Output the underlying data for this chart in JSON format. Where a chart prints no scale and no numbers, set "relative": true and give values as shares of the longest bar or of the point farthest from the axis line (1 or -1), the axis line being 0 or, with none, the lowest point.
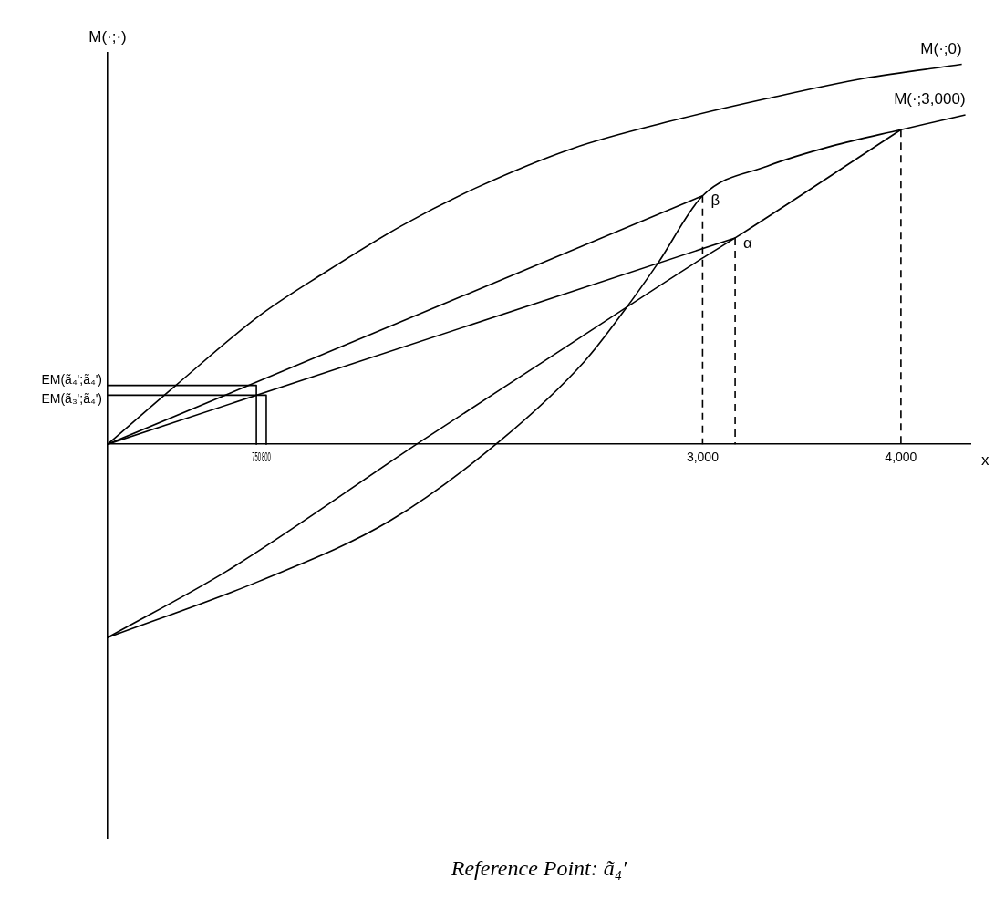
{
  "chart_data": {
    "type": "line",
    "relative": true,
    "title": "Reference Point: ã₄'",
    "ylabel": "M(·;·)",
    "xlabel": "x",
    "xlim": [
      0,
      4350
    ],
    "xticks": [
      750,
      800,
      {
        "value": 3000,
        "label": "3,000"
      },
      {
        "value": 4000,
        "label": "4,000"
      }
    ],
    "grid": false,
    "legend": false,
    "marker": "none",
    "line_style": "solid",
    "annotations": [
      {
        "text": "β",
        "x": 3000,
        "y": 0.654
      },
      {
        "text": "α",
        "x": 3164,
        "y": 0.543
      },
      {
        "text": "EM(ã₄';ã₄')",
        "x": 0,
        "y": 0.155
      },
      {
        "text": "EM(ã₃';ã₄')",
        "x": 0,
        "y": 0.129
      }
    ],
    "series": [
      {
        "name": "M(·;0)",
        "color": "#000000",
        "x": [
          0,
          344,
          767,
          1092,
          1482,
          1854,
          2346,
          2834,
          3326,
          3814,
          4307
        ],
        "values": [
          0,
          0.155,
          0.339,
          0.451,
          0.575,
          0.674,
          0.779,
          0.85,
          0.91,
          0.963,
          1
        ]
      },
      {
        "name": "M(·;3,000)",
        "color": "#000000",
        "x": [
          0,
          767,
          1422,
          1979,
          2406,
          2611,
          2774,
          3000,
          3326,
          3652,
          4000,
          4325
        ],
        "values": [
          -0.509,
          -0.36,
          -0.202,
          0.009,
          0.219,
          0.356,
          0.476,
          0.654,
          0.732,
          0.785,
          0.828,
          0.867
        ]
      },
      {
        "color": "#000000",
        "x": [
          0,
          604,
          1584,
          2202,
          2997,
          3164,
          4000
        ],
        "values": [
          -0.509,
          -0.333,
          0.009,
          0.219,
          0.489,
          0.543,
          0.828
        ]
      },
      {
        "color": "#000000",
        "x": [
          0,
          3000
        ],
        "values": [
          0,
          0.654
        ]
      },
      {
        "color": "#000000",
        "x": [
          0,
          3164
        ],
        "values": [
          0,
          0.543
        ]
      },
      {
        "color": "#000000",
        "x": [
          0,
          750,
          750
        ],
        "values": [
          0.155,
          0.155,
          0
        ]
      },
      {
        "color": "#000000",
        "x": [
          0,
          800,
          800
        ],
        "values": [
          0.129,
          0.129,
          0
        ]
      },
      {
        "color": "#000000",
        "line_style": "dashed",
        "x": [
          3000,
          3000
        ],
        "values": [
          0.654,
          0
        ]
      },
      {
        "color": "#000000",
        "line_style": "dashed",
        "x": [
          3164,
          3164
        ],
        "values": [
          0.543,
          0
        ]
      },
      {
        "color": "#000000",
        "line_style": "dashed",
        "x": [
          4000,
          4000
        ],
        "values": [
          0.828,
          0
        ]
      }
    ]
  }
}
